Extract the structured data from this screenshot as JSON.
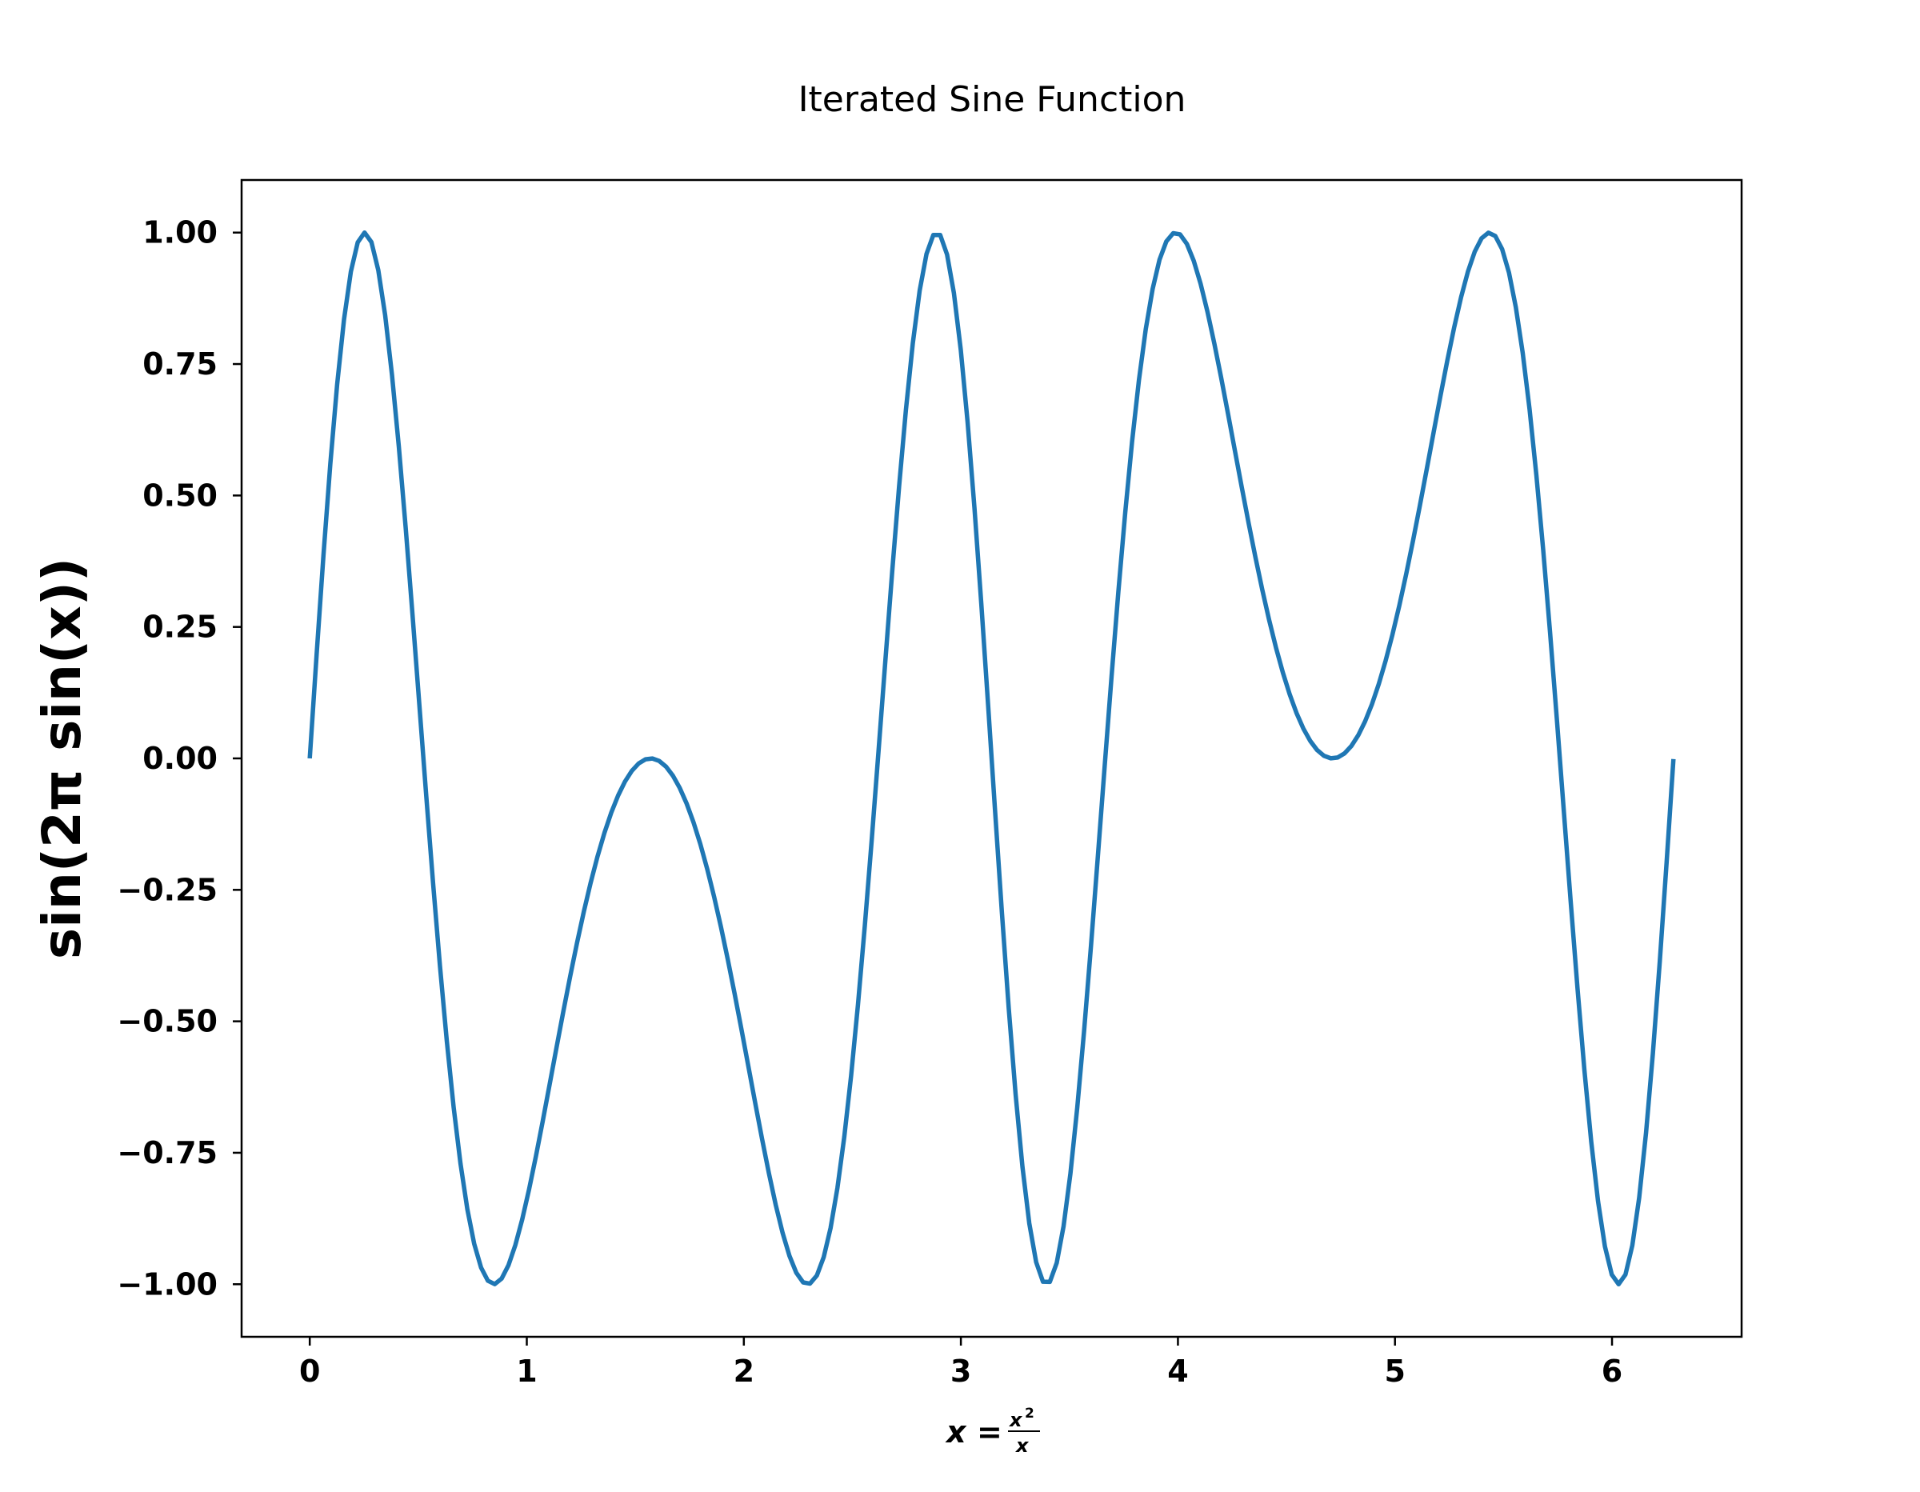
{
  "chart_data": {
    "type": "line",
    "title": "Iterated Sine Function",
    "xlabel": {
      "lhs": "x",
      "equals": "=",
      "numerator": "x",
      "numerator_exponent": "2",
      "denominator": "x"
    },
    "ylabel": "sin(2π sin(x))",
    "function": "sin(2*pi*sin(x))",
    "x_domain": [
      0,
      6.283
    ],
    "xlim": [
      -0.314,
      6.597
    ],
    "ylim": [
      -1.1,
      1.1
    ],
    "x_ticks": [
      0,
      1,
      2,
      3,
      4,
      5,
      6
    ],
    "x_tick_labels": [
      "0",
      "1",
      "2",
      "3",
      "4",
      "5",
      "6"
    ],
    "y_ticks": [
      1.0,
      0.75,
      0.5,
      0.25,
      0.0,
      -0.25,
      -0.5,
      -0.75,
      -1.0
    ],
    "y_tick_labels": [
      "1.00",
      "0.75",
      "0.50",
      "0.25",
      "0.00",
      "−0.25",
      "−0.50",
      "−0.75",
      "−1.00"
    ],
    "grid": false,
    "legend": "none",
    "series": [
      {
        "color": "#1f77b4",
        "sample_points": {
          "x": [
            0,
            0.25,
            0.84,
            1.571,
            2.3,
            2.89,
            3.39,
            3.99,
            4.712,
            5.43,
            6.03,
            6.283
          ],
          "y": [
            0,
            1.0,
            -1.0,
            0.0,
            -1.0,
            1.0,
            -1.0,
            1.0,
            0.0,
            1.0,
            -1.0,
            0
          ]
        }
      }
    ]
  }
}
